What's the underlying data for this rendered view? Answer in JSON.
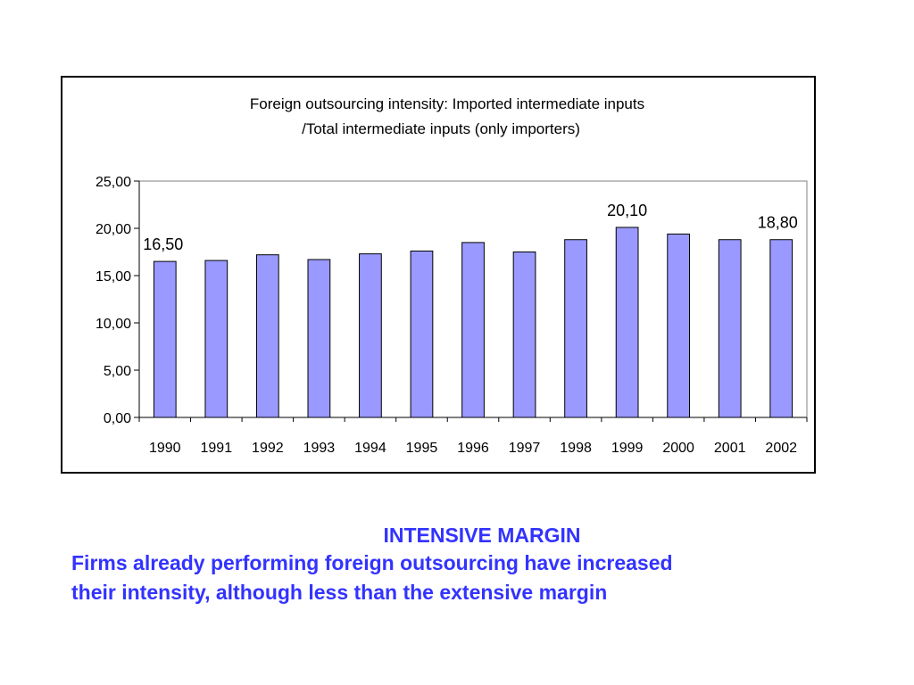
{
  "chart_data": {
    "type": "bar",
    "title_lines": [
      "Foreign outsourcing  intensity:  Imported intermediate inputs",
      "/Total intermediate inputs (only importers)"
    ],
    "xlabel": "",
    "ylabel": "",
    "categories": [
      "1990",
      "1991",
      "1992",
      "1993",
      "1994",
      "1995",
      "1996",
      "1997",
      "1998",
      "1999",
      "2000",
      "2001",
      "2002"
    ],
    "values": [
      16.5,
      16.6,
      17.2,
      16.7,
      17.3,
      17.6,
      18.5,
      17.5,
      18.8,
      20.1,
      19.4,
      18.8,
      18.8
    ],
    "ylim": [
      0,
      25
    ],
    "yticks": [
      "0,00",
      "5,00",
      "10,00",
      "15,00",
      "20,00",
      "25,00"
    ],
    "ytick_values": [
      0,
      5,
      10,
      15,
      20,
      25
    ],
    "data_labels": [
      {
        "index": 0,
        "text": "16,50"
      },
      {
        "index": 9,
        "text": "20,10"
      },
      {
        "index": 12,
        "text": "18,80"
      }
    ],
    "bar_color": "#9999ff",
    "bar_edge_color": "#000000",
    "grid": false,
    "legend": "none"
  },
  "caption": {
    "heading": "INTENSIVE MARGIN",
    "body_line1": "Firms already performing foreign outsourcing have increased",
    "body_line2": "their intensity, although less than the extensive margin"
  },
  "colors": {
    "caption_text": "#3333ff",
    "chart_border": "#000000"
  }
}
